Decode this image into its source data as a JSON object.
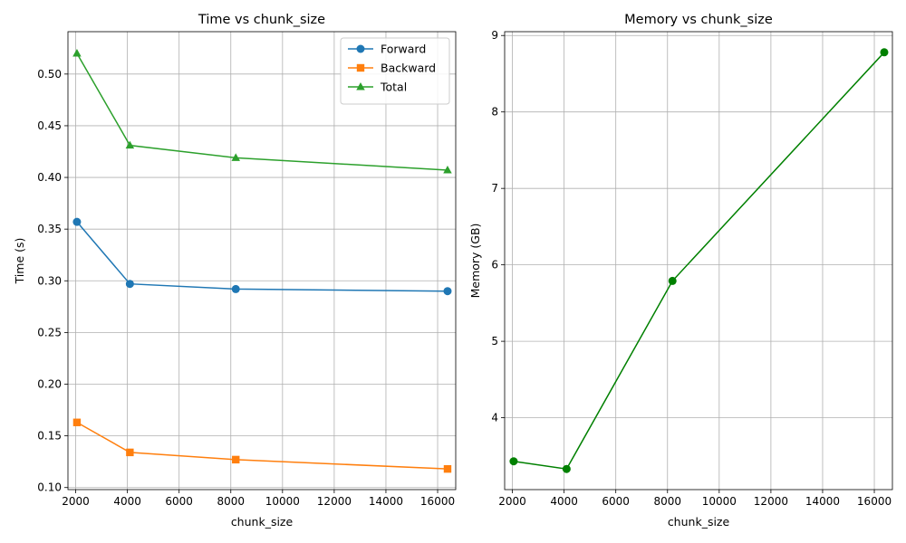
{
  "chart_data": [
    {
      "type": "line",
      "title": "Time vs chunk_size",
      "xlabel": "chunk_size",
      "ylabel": "Time (s)",
      "xlim": [
        1700,
        16700
      ],
      "ylim": [
        0.098,
        0.541
      ],
      "x_ticks": [
        2000,
        4000,
        6000,
        8000,
        10000,
        12000,
        14000,
        16000
      ],
      "y_ticks": [
        0.1,
        0.15,
        0.2,
        0.25,
        0.3,
        0.35,
        0.4,
        0.45,
        0.5
      ],
      "y_tick_labels": [
        "0.10",
        "0.15",
        "0.20",
        "0.25",
        "0.30",
        "0.35",
        "0.40",
        "0.45",
        "0.50"
      ],
      "grid": true,
      "legend": "top-right",
      "x": [
        2048,
        4096,
        8192,
        16384
      ],
      "series": [
        {
          "name": "Forward",
          "values": [
            0.357,
            0.297,
            0.292,
            0.29
          ],
          "color": "#1f77b4",
          "marker": "circle"
        },
        {
          "name": "Backward",
          "values": [
            0.163,
            0.134,
            0.127,
            0.118
          ],
          "color": "#ff7f0e",
          "marker": "square"
        },
        {
          "name": "Total",
          "values": [
            0.52,
            0.431,
            0.419,
            0.407
          ],
          "color": "#2ca02c",
          "marker": "triangle"
        }
      ]
    },
    {
      "type": "line",
      "title": "Memory vs chunk_size",
      "xlabel": "chunk_size",
      "ylabel": "Memory (GB)",
      "xlim": [
        1700,
        16700
      ],
      "ylim": [
        3.06,
        9.05
      ],
      "x_ticks": [
        2000,
        4000,
        6000,
        8000,
        10000,
        12000,
        14000,
        16000
      ],
      "y_ticks": [
        4,
        5,
        6,
        7,
        8,
        9
      ],
      "y_tick_labels": [
        "4",
        "5",
        "6",
        "7",
        "8",
        "9"
      ],
      "grid": true,
      "legend": "none",
      "x": [
        2048,
        4096,
        8192,
        16384
      ],
      "series": [
        {
          "values": [
            3.43,
            3.33,
            5.79,
            8.78
          ],
          "color": "#008000",
          "marker": "circle"
        }
      ]
    }
  ]
}
